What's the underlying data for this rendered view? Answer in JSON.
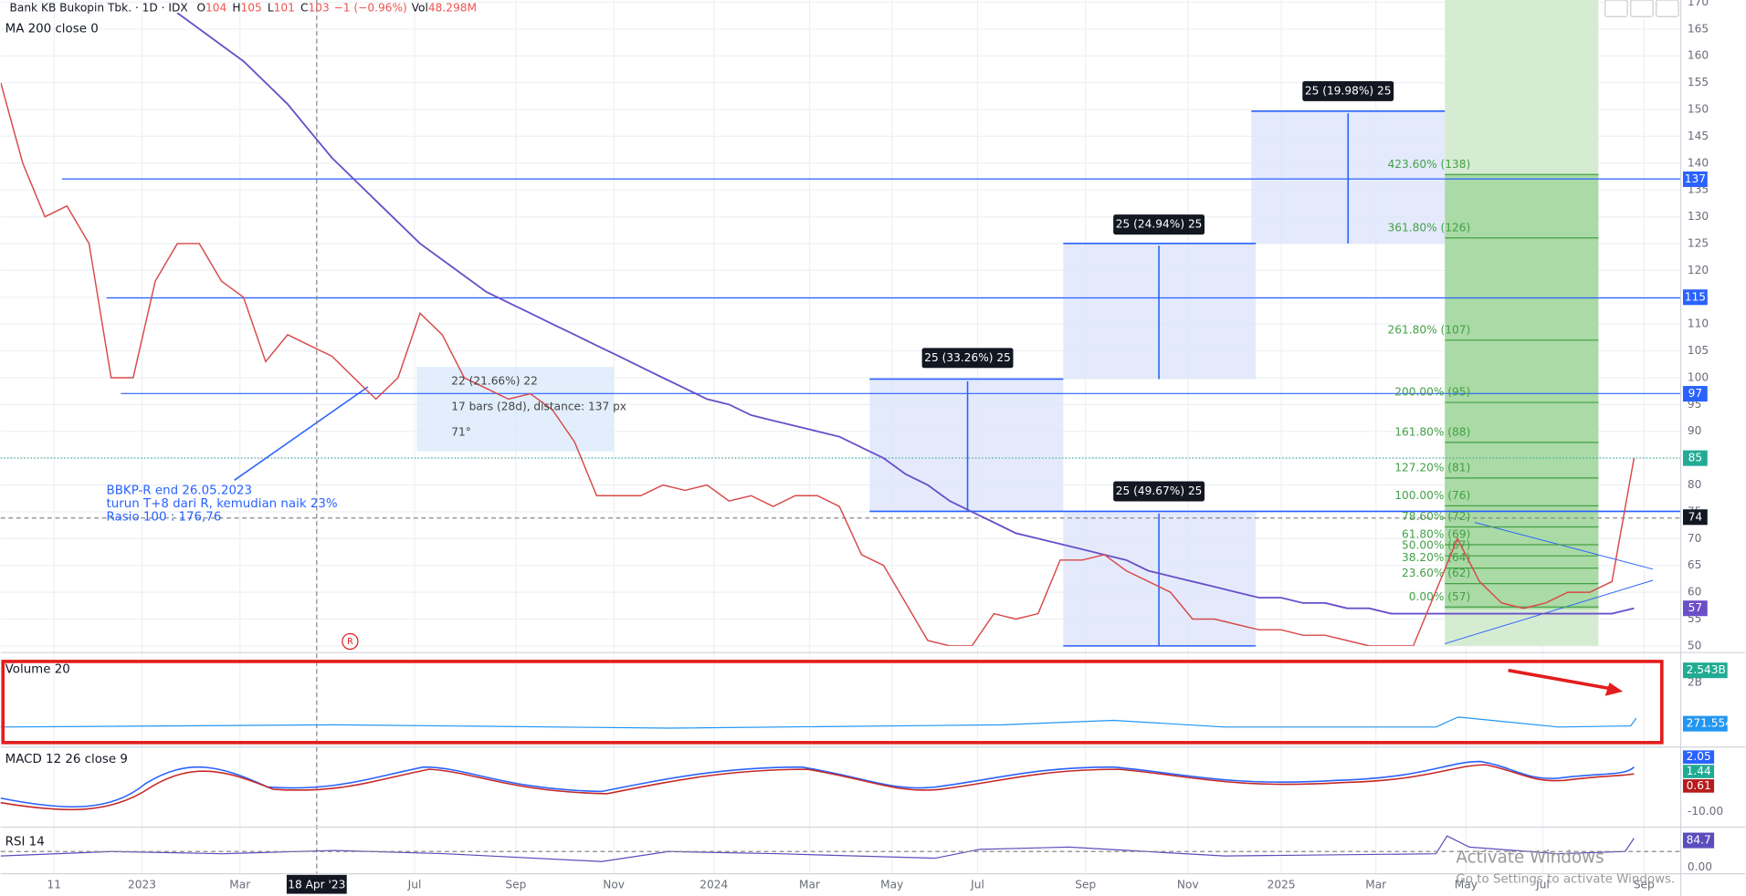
{
  "header": {
    "title": "Bank KB Bukopin Tbk. · 1D · IDX",
    "quote_labels": [
      "O",
      "H",
      "L",
      "C"
    ],
    "quote_values": [
      "104",
      "105",
      "101",
      "103"
    ],
    "change": "−1 (−0.96%)",
    "volume_label": "Vol",
    "volume": "48.298M"
  },
  "indicator": "MA 200 close 0",
  "price_chart": {
    "ylim": [
      50,
      170
    ],
    "yticks": [
      50,
      55,
      60,
      65,
      70,
      75,
      80,
      85,
      90,
      95,
      100,
      105,
      110,
      115,
      120,
      125,
      130,
      135,
      140,
      145,
      150,
      155,
      160,
      165,
      170
    ],
    "close": [
      155,
      140,
      130,
      132,
      125,
      100,
      100,
      118,
      125,
      125,
      118,
      115,
      103,
      108,
      106,
      104,
      100,
      96,
      100,
      112,
      108,
      100,
      98,
      96,
      97,
      94,
      88,
      78,
      78,
      78,
      80,
      79,
      80,
      77,
      78,
      76,
      78,
      78,
      76,
      67,
      65,
      58,
      51,
      50,
      50,
      56,
      55,
      56,
      66,
      66,
      67,
      64,
      62,
      60,
      55,
      55,
      54,
      53,
      53,
      52,
      52,
      51,
      50,
      50,
      50,
      60,
      70,
      62,
      58,
      57,
      58,
      60,
      60,
      62,
      85
    ],
    "ma200": [
      null,
      null,
      null,
      null,
      null,
      null,
      null,
      null,
      168,
      165,
      162,
      159,
      155,
      151,
      146,
      141,
      137,
      133,
      129,
      125,
      122,
      119,
      116,
      114,
      112,
      110,
      108,
      106,
      104,
      102,
      100,
      98,
      96,
      95,
      93,
      92,
      91,
      90,
      89,
      87,
      85,
      82,
      80,
      77,
      75,
      73,
      71,
      70,
      69,
      68,
      67,
      66,
      64,
      63,
      62,
      61,
      60,
      59,
      59,
      58,
      58,
      57,
      57,
      56,
      56,
      56,
      56,
      56,
      56,
      56,
      56,
      56,
      56,
      56,
      57
    ]
  },
  "badges": [
    137,
    115,
    97,
    85,
    74,
    57
  ],
  "time_axis": [
    "11",
    "2023",
    "Mar",
    "18 Apr '23",
    "Jul",
    "Sep",
    "Nov",
    "2024",
    "Mar",
    "May",
    "Jul",
    "Sep",
    "Nov",
    "2025",
    "Mar",
    "May",
    "Jul",
    "Sep"
  ],
  "annotation": [
    "BBKP-R end 26.05.2023",
    "turun T+8 dari R, kemudian naik 23%",
    "Rasio 100 : 176,76"
  ],
  "measure": [
    "22 (21.66%) 22",
    "17 bars (28d), distance: 137 px",
    "71°"
  ],
  "projections": [
    "25 (33.26%) 25",
    "25 (24.94%) 25",
    "25 (19.98%) 25",
    "25 (49.67%) 25"
  ],
  "fib": [
    "423.60% (138)",
    "361.80% (126)",
    "261.80% (107)",
    "200.00% (95)",
    "161.80% (88)",
    "127.20% (81)",
    "100.00% (76)",
    "78.60% (72)",
    "61.80% (69)",
    "50.00% (67)",
    "38.20% (64)",
    "23.60% (62)",
    "0.00% (57)"
  ],
  "volume_panel": {
    "title": "Volume 20",
    "labels": [
      "2.543B",
      "271.554M"
    ],
    "tick": "2B"
  },
  "macd_panel": {
    "title": "MACD 12 26 close 9",
    "labels": [
      "2.05",
      "1.44",
      "0.61"
    ],
    "tick": "-10.00"
  },
  "rsi_panel": {
    "title": "RSI 14",
    "label": "84.7",
    "tick": "0.00"
  },
  "watermark": [
    "Activate Windows",
    "Go to Settings to activate Windows."
  ]
}
